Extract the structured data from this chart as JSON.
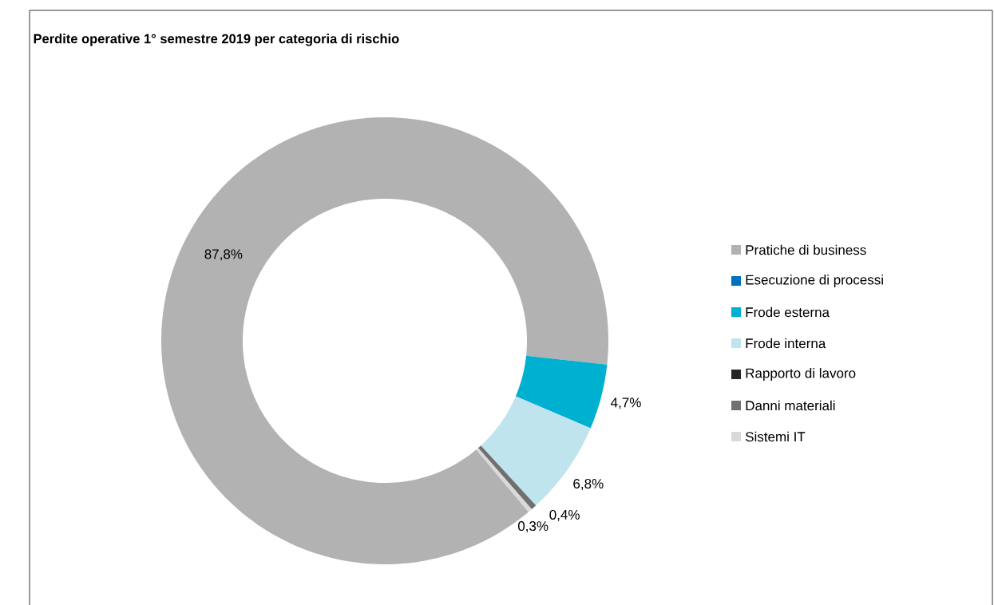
{
  "chart_data": {
    "type": "donut",
    "title": "Perdite operative 1° semestre 2019 per categoria di rischio",
    "categories": [
      "Pratiche di business",
      "Esecuzione di processi",
      "Frode esterna",
      "Frode interna",
      "Rapporto di lavoro",
      "Danni materiali",
      "Sistemi IT"
    ],
    "values": [
      87.8,
      0,
      4.7,
      6.8,
      0,
      0.4,
      0.3
    ],
    "value_labels": [
      "87,8%",
      null,
      "4,7%",
      "6,8%",
      null,
      "0,4%",
      "0,3%"
    ],
    "colors": [
      "#b2b2b2",
      "#0070c0",
      "#00b0d0",
      "#bfe4ee",
      "#262626",
      "#707070",
      "#d9d9d9"
    ],
    "legend": "right"
  }
}
